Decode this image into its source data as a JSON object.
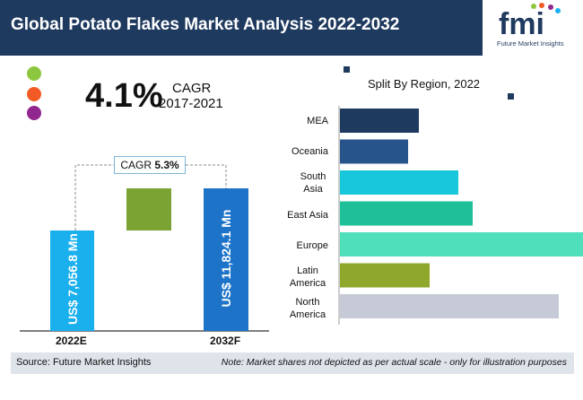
{
  "header": {
    "title": "Global Potato Flakes Market Analysis 2022-2032",
    "logo_text": "fmi",
    "logo_subtext": "Future Market Insights"
  },
  "left_panel": {
    "cagr_value": "4.1%",
    "cagr_label": "CAGR",
    "cagr_period": "2017-2021",
    "bridge_label": "CAGR",
    "bridge_value": "5.3%",
    "bar_2022_label": "US$ 7,056.8 Mn",
    "bar_2032_label": "US$ 11,824.1 Mn",
    "year_2022": "2022E",
    "year_2032": "2032F",
    "colors": {
      "bar_2022": "#1ab0ee",
      "bar_2032": "#1c73c8",
      "bridge": "#7aa333",
      "dot1": "#8dc63f",
      "dot2": "#f15a24",
      "dot3": "#92278f"
    }
  },
  "chart_data": {
    "type": "bar",
    "orientation": "horizontal",
    "title": "Split By Region, 2022",
    "categories": [
      "MEA",
      "Oceania",
      "South Asia",
      "East Asia",
      "Europe",
      "Latin America",
      "North America"
    ],
    "values": [
      22,
      19,
      33,
      37,
      75,
      25,
      61
    ],
    "colors": [
      "#1f3a5f",
      "#27548a",
      "#19c7dc",
      "#1ec09a",
      "#4fdfba",
      "#8fa72b",
      "#c5cad6"
    ],
    "xlim": [
      0,
      80
    ],
    "grid": false
  },
  "footer": {
    "source": "Source: Future Market Insights",
    "note": "Note: Market shares not depicted as per actual scale - only for illustration purposes"
  }
}
